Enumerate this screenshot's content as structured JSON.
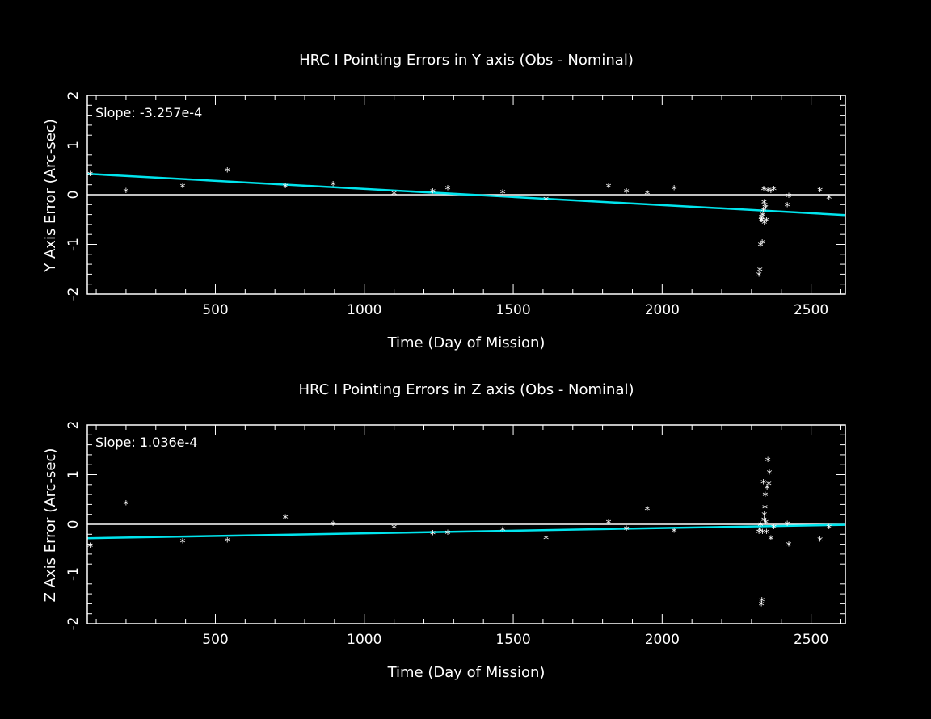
{
  "chart_data": [
    {
      "type": "scatter",
      "title": "HRC I Pointing Errors in Y axis (Obs - Nominal)",
      "xlabel": "Time (Day of Mission)",
      "ylabel": "Y Axis Error (Arc-sec)",
      "annotation": "Slope: -3.257e-4",
      "xlim": [
        70,
        2615
      ],
      "ylim": [
        -2,
        2
      ],
      "xticks": [
        500,
        1000,
        1500,
        2000,
        2500
      ],
      "xtick_labels": [
        "500",
        "1000",
        "1500",
        "2000",
        "2500"
      ],
      "yticks": [
        -2,
        -1,
        0,
        1,
        2
      ],
      "ytick_labels": [
        "-2",
        "-1",
        "0",
        "1",
        "2"
      ],
      "fit_line": {
        "x": [
          70,
          2615
        ],
        "y": [
          0.42,
          -0.41
        ],
        "color": "#00e5ee"
      },
      "reference_line": {
        "y": 0
      },
      "marker": "*",
      "grid": false,
      "series": [
        {
          "x": [
            80,
            200,
            390,
            540,
            735,
            895,
            1100,
            1230,
            1280,
            1465,
            1610,
            1820,
            1880,
            1950,
            2040,
            2325,
            2328,
            2330,
            2332,
            2333,
            2335,
            2336,
            2338,
            2340,
            2341,
            2342,
            2343,
            2345,
            2347,
            2350,
            2355,
            2365,
            2375,
            2420,
            2425,
            2530,
            2560
          ],
          "y": [
            0.42,
            0.08,
            0.18,
            0.5,
            0.18,
            0.22,
            0.03,
            0.07,
            0.14,
            0.06,
            -0.08,
            0.18,
            0.07,
            0.04,
            0.14,
            -1.6,
            -1.5,
            -1.0,
            -0.5,
            -0.45,
            -0.5,
            -0.95,
            -0.4,
            -0.3,
            0.12,
            -0.15,
            -0.55,
            -0.2,
            -0.25,
            -0.5,
            0.1,
            0.08,
            0.12,
            -0.2,
            -0.02,
            0.1,
            -0.05
          ]
        }
      ]
    },
    {
      "type": "scatter",
      "title": "HRC I Pointing Errors in  Z axis (Obs - Nominal)",
      "xlabel": "Time (Day of Mission)",
      "ylabel": "Z Axis Error (Arc-sec)",
      "annotation": "Slope: 1.036e-4",
      "xlim": [
        70,
        2615
      ],
      "ylim": [
        -2,
        2
      ],
      "xticks": [
        500,
        1000,
        1500,
        2000,
        2500
      ],
      "xtick_labels": [
        "500",
        "1000",
        "1500",
        "2000",
        "2500"
      ],
      "yticks": [
        -2,
        -1,
        0,
        1,
        2
      ],
      "ytick_labels": [
        "-2",
        "-1",
        "0",
        "1",
        "2"
      ],
      "fit_line": {
        "x": [
          70,
          2615
        ],
        "y": [
          -0.28,
          -0.01
        ],
        "color": "#00e5ee"
      },
      "reference_line": {
        "y": 0
      },
      "marker": "*",
      "grid": false,
      "series": [
        {
          "x": [
            80,
            200,
            390,
            540,
            735,
            895,
            1100,
            1230,
            1280,
            1465,
            1610,
            1820,
            1880,
            1950,
            2040,
            2325,
            2328,
            2330,
            2333,
            2335,
            2337,
            2340,
            2342,
            2343,
            2345,
            2346,
            2348,
            2350,
            2352,
            2355,
            2358,
            2360,
            2365,
            2375,
            2420,
            2425,
            2530,
            2560
          ],
          "y": [
            -0.42,
            0.43,
            -0.33,
            -0.32,
            0.15,
            0.02,
            -0.05,
            -0.17,
            -0.16,
            -0.1,
            -0.27,
            0.05,
            -0.08,
            0.32,
            -0.12,
            -0.15,
            -0.1,
            0.0,
            -1.6,
            -1.52,
            -0.15,
            0.85,
            0.1,
            0.2,
            0.35,
            0.6,
            0.05,
            -0.15,
            0.75,
            1.3,
            0.82,
            1.05,
            -0.28,
            -0.05,
            0.02,
            -0.4,
            -0.3,
            -0.05
          ]
        }
      ]
    }
  ]
}
